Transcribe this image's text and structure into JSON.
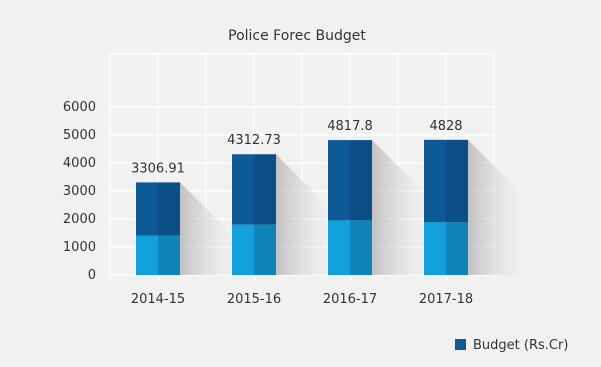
{
  "chart_data": {
    "type": "bar",
    "title": "Police Forec Budget",
    "categories": [
      "2014-15",
      "2015-16",
      "2016-17",
      "2017-18"
    ],
    "series": [
      {
        "name": "Budget (Rs.Cr)",
        "values": [
          3306.91,
          4312.73,
          4817.8,
          4828
        ]
      }
    ],
    "data_labels": [
      "3306.91",
      "4312.73",
      "4817.8",
      "4828"
    ],
    "y_ticks": [
      "0",
      "1000",
      "2000",
      "3000",
      "4000",
      "5000",
      "6000"
    ],
    "ylim": [
      0,
      6000
    ],
    "grid": true,
    "legend_position": "bottom-right",
    "colors": {
      "bar_top": "#0d5a96",
      "bar_top_shade": "#0b4f86",
      "bar_bottom": "#12a1dc",
      "bar_bottom_shade": "#0f84b9",
      "grid": "#ffffff",
      "plot_bg": "#f1f1f1",
      "text": "#333333"
    }
  }
}
